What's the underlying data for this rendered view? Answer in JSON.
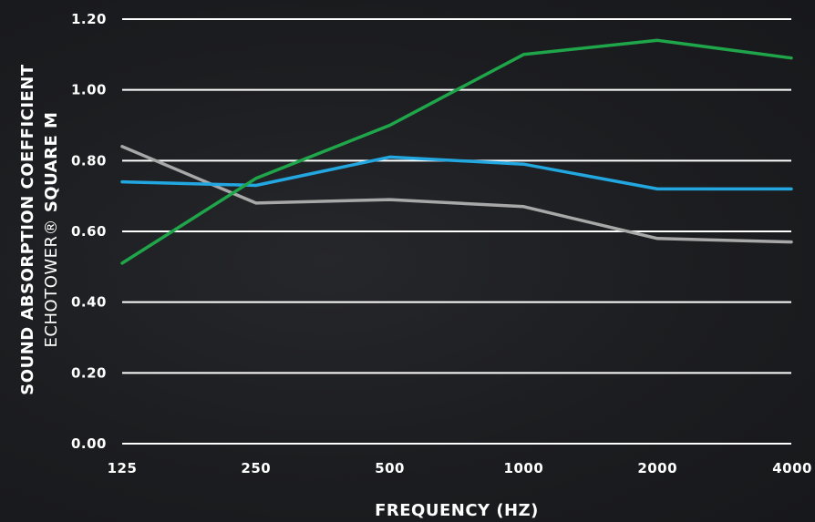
{
  "chart_data": {
    "type": "line",
    "x": [
      "125",
      "250",
      "500",
      "1000",
      "2000",
      "4000"
    ],
    "series": [
      {
        "color": "#1fa64a",
        "values": [
          0.51,
          0.75,
          0.9,
          1.1,
          1.14,
          1.09
        ]
      },
      {
        "color": "#22a7e0",
        "values": [
          0.74,
          0.73,
          0.81,
          0.79,
          0.72,
          0.72
        ]
      },
      {
        "color": "#a8a8a8",
        "values": [
          0.84,
          0.68,
          0.69,
          0.67,
          0.58,
          0.57
        ]
      }
    ],
    "yticks": [
      "0.00",
      "0.20",
      "0.40",
      "0.60",
      "0.80",
      "1.00",
      "1.20"
    ],
    "ylim": [
      0,
      1.2
    ],
    "xlabel": "FREQUENCY (HZ)",
    "ylabel_line1": "SOUND ABSORPTION COEFFICIENT",
    "ylabel_line2_light": "ECHOTOWER®",
    "ylabel_line2_bold": " SQUARE M",
    "grid": true,
    "gridline_color": "#ffffff",
    "background": "#1c1d20"
  }
}
